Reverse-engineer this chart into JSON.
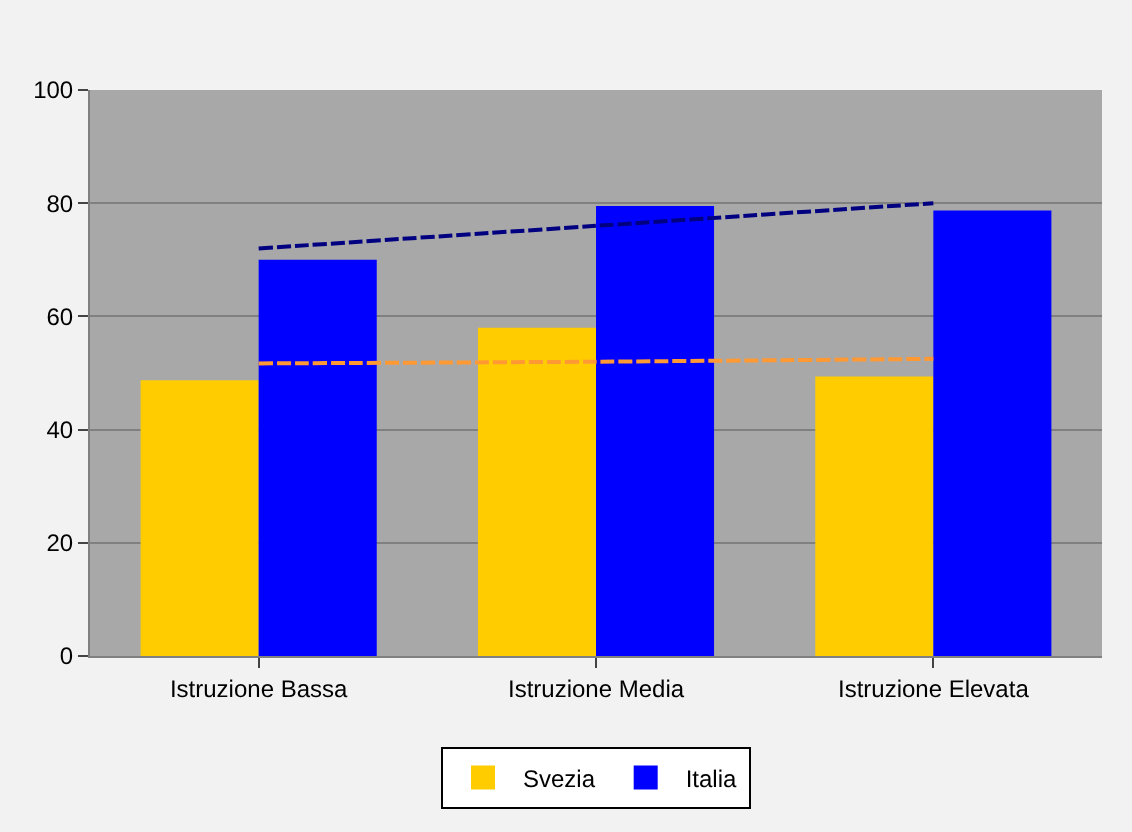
{
  "chart_data": {
    "type": "bar",
    "categories": [
      "Istruzione Bassa",
      "Istruzione Media",
      "Istruzione Elevata"
    ],
    "series": [
      {
        "name": "Svezia",
        "color": "#ffcc00",
        "values": [
          48.7,
          58,
          49.4
        ]
      },
      {
        "name": "Italia",
        "color": "#0000ff",
        "values": [
          70,
          79.5,
          78.7
        ]
      },
      {
        "type": "line",
        "color": "#000080",
        "line_style": "dashed",
        "values": [
          72,
          76,
          80
        ]
      },
      {
        "type": "line",
        "color": "#ff9933",
        "line_style": "dashed",
        "values": [
          51.7,
          52,
          52.5
        ]
      }
    ],
    "ylim": [
      0,
      100
    ],
    "yticks": [
      0,
      20,
      40,
      60,
      80,
      100
    ],
    "grid": "y",
    "legend": "bottom"
  }
}
